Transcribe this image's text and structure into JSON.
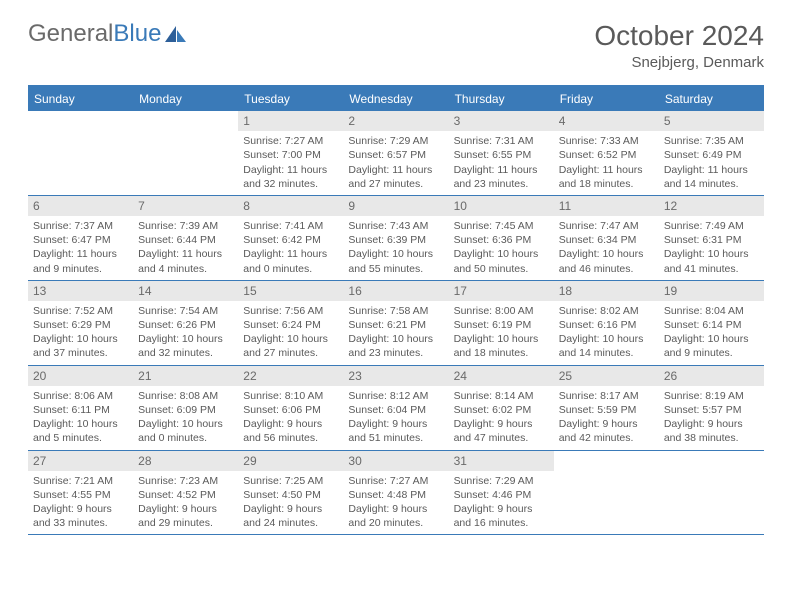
{
  "brand": {
    "part1": "General",
    "part2": "Blue"
  },
  "colors": {
    "accent": "#3a7ab8",
    "header_bg": "#3a7ab8",
    "daynum_bg": "#e8e8e8",
    "text": "#5a5a5a"
  },
  "title": "October 2024",
  "location": "Snejbjerg, Denmark",
  "weekdays": [
    "Sunday",
    "Monday",
    "Tuesday",
    "Wednesday",
    "Thursday",
    "Friday",
    "Saturday"
  ],
  "weeks": [
    [
      {
        "n": "",
        "sr": "",
        "ss": "",
        "dl": ""
      },
      {
        "n": "",
        "sr": "",
        "ss": "",
        "dl": ""
      },
      {
        "n": "1",
        "sr": "Sunrise: 7:27 AM",
        "ss": "Sunset: 7:00 PM",
        "dl": "Daylight: 11 hours and 32 minutes."
      },
      {
        "n": "2",
        "sr": "Sunrise: 7:29 AM",
        "ss": "Sunset: 6:57 PM",
        "dl": "Daylight: 11 hours and 27 minutes."
      },
      {
        "n": "3",
        "sr": "Sunrise: 7:31 AM",
        "ss": "Sunset: 6:55 PM",
        "dl": "Daylight: 11 hours and 23 minutes."
      },
      {
        "n": "4",
        "sr": "Sunrise: 7:33 AM",
        "ss": "Sunset: 6:52 PM",
        "dl": "Daylight: 11 hours and 18 minutes."
      },
      {
        "n": "5",
        "sr": "Sunrise: 7:35 AM",
        "ss": "Sunset: 6:49 PM",
        "dl": "Daylight: 11 hours and 14 minutes."
      }
    ],
    [
      {
        "n": "6",
        "sr": "Sunrise: 7:37 AM",
        "ss": "Sunset: 6:47 PM",
        "dl": "Daylight: 11 hours and 9 minutes."
      },
      {
        "n": "7",
        "sr": "Sunrise: 7:39 AM",
        "ss": "Sunset: 6:44 PM",
        "dl": "Daylight: 11 hours and 4 minutes."
      },
      {
        "n": "8",
        "sr": "Sunrise: 7:41 AM",
        "ss": "Sunset: 6:42 PM",
        "dl": "Daylight: 11 hours and 0 minutes."
      },
      {
        "n": "9",
        "sr": "Sunrise: 7:43 AM",
        "ss": "Sunset: 6:39 PM",
        "dl": "Daylight: 10 hours and 55 minutes."
      },
      {
        "n": "10",
        "sr": "Sunrise: 7:45 AM",
        "ss": "Sunset: 6:36 PM",
        "dl": "Daylight: 10 hours and 50 minutes."
      },
      {
        "n": "11",
        "sr": "Sunrise: 7:47 AM",
        "ss": "Sunset: 6:34 PM",
        "dl": "Daylight: 10 hours and 46 minutes."
      },
      {
        "n": "12",
        "sr": "Sunrise: 7:49 AM",
        "ss": "Sunset: 6:31 PM",
        "dl": "Daylight: 10 hours and 41 minutes."
      }
    ],
    [
      {
        "n": "13",
        "sr": "Sunrise: 7:52 AM",
        "ss": "Sunset: 6:29 PM",
        "dl": "Daylight: 10 hours and 37 minutes."
      },
      {
        "n": "14",
        "sr": "Sunrise: 7:54 AM",
        "ss": "Sunset: 6:26 PM",
        "dl": "Daylight: 10 hours and 32 minutes."
      },
      {
        "n": "15",
        "sr": "Sunrise: 7:56 AM",
        "ss": "Sunset: 6:24 PM",
        "dl": "Daylight: 10 hours and 27 minutes."
      },
      {
        "n": "16",
        "sr": "Sunrise: 7:58 AM",
        "ss": "Sunset: 6:21 PM",
        "dl": "Daylight: 10 hours and 23 minutes."
      },
      {
        "n": "17",
        "sr": "Sunrise: 8:00 AM",
        "ss": "Sunset: 6:19 PM",
        "dl": "Daylight: 10 hours and 18 minutes."
      },
      {
        "n": "18",
        "sr": "Sunrise: 8:02 AM",
        "ss": "Sunset: 6:16 PM",
        "dl": "Daylight: 10 hours and 14 minutes."
      },
      {
        "n": "19",
        "sr": "Sunrise: 8:04 AM",
        "ss": "Sunset: 6:14 PM",
        "dl": "Daylight: 10 hours and 9 minutes."
      }
    ],
    [
      {
        "n": "20",
        "sr": "Sunrise: 8:06 AM",
        "ss": "Sunset: 6:11 PM",
        "dl": "Daylight: 10 hours and 5 minutes."
      },
      {
        "n": "21",
        "sr": "Sunrise: 8:08 AM",
        "ss": "Sunset: 6:09 PM",
        "dl": "Daylight: 10 hours and 0 minutes."
      },
      {
        "n": "22",
        "sr": "Sunrise: 8:10 AM",
        "ss": "Sunset: 6:06 PM",
        "dl": "Daylight: 9 hours and 56 minutes."
      },
      {
        "n": "23",
        "sr": "Sunrise: 8:12 AM",
        "ss": "Sunset: 6:04 PM",
        "dl": "Daylight: 9 hours and 51 minutes."
      },
      {
        "n": "24",
        "sr": "Sunrise: 8:14 AM",
        "ss": "Sunset: 6:02 PM",
        "dl": "Daylight: 9 hours and 47 minutes."
      },
      {
        "n": "25",
        "sr": "Sunrise: 8:17 AM",
        "ss": "Sunset: 5:59 PM",
        "dl": "Daylight: 9 hours and 42 minutes."
      },
      {
        "n": "26",
        "sr": "Sunrise: 8:19 AM",
        "ss": "Sunset: 5:57 PM",
        "dl": "Daylight: 9 hours and 38 minutes."
      }
    ],
    [
      {
        "n": "27",
        "sr": "Sunrise: 7:21 AM",
        "ss": "Sunset: 4:55 PM",
        "dl": "Daylight: 9 hours and 33 minutes."
      },
      {
        "n": "28",
        "sr": "Sunrise: 7:23 AM",
        "ss": "Sunset: 4:52 PM",
        "dl": "Daylight: 9 hours and 29 minutes."
      },
      {
        "n": "29",
        "sr": "Sunrise: 7:25 AM",
        "ss": "Sunset: 4:50 PM",
        "dl": "Daylight: 9 hours and 24 minutes."
      },
      {
        "n": "30",
        "sr": "Sunrise: 7:27 AM",
        "ss": "Sunset: 4:48 PM",
        "dl": "Daylight: 9 hours and 20 minutes."
      },
      {
        "n": "31",
        "sr": "Sunrise: 7:29 AM",
        "ss": "Sunset: 4:46 PM",
        "dl": "Daylight: 9 hours and 16 minutes."
      },
      {
        "n": "",
        "sr": "",
        "ss": "",
        "dl": ""
      },
      {
        "n": "",
        "sr": "",
        "ss": "",
        "dl": ""
      }
    ]
  ]
}
